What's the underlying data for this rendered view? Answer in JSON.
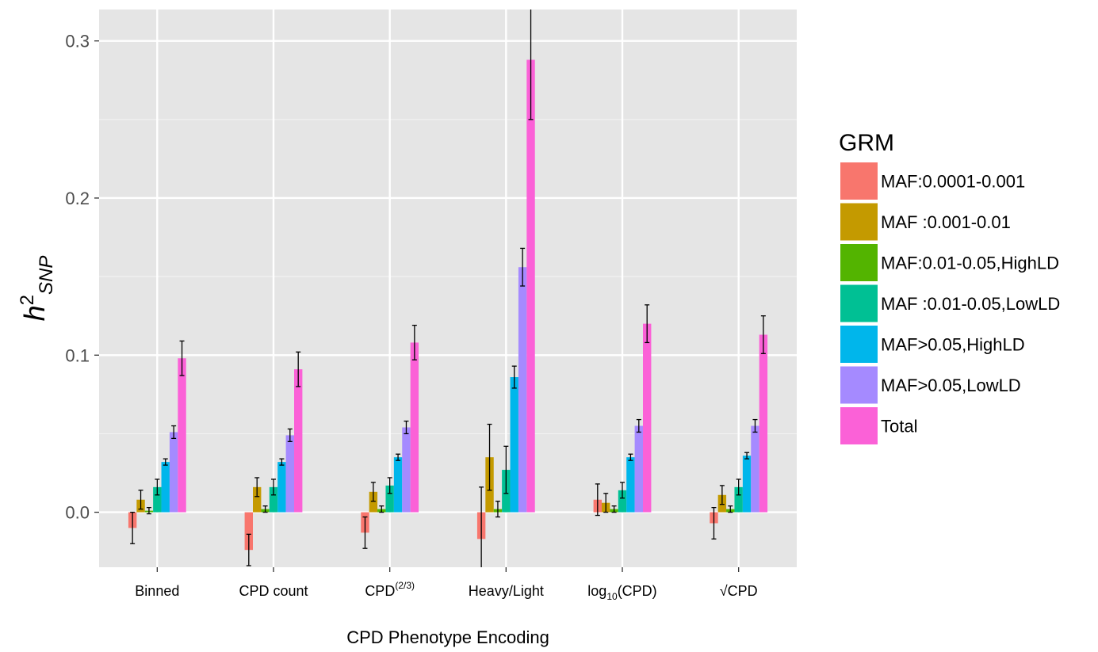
{
  "chart_data": {
    "type": "bar",
    "title": "",
    "xlabel": "CPD Phenotype Encoding",
    "ylabel": {
      "base": "h",
      "superscript": "2",
      "subscript": "SNP"
    },
    "ylim": [
      -0.035,
      0.32
    ],
    "yticks": [
      0.0,
      0.1,
      0.2,
      0.3
    ],
    "ytick_labels": [
      "0.0",
      "0.1",
      "0.2",
      "0.3"
    ],
    "grid": true,
    "legend_position": "right",
    "legend_title": "GRM",
    "categories": [
      {
        "base": "Binned",
        "sub": "",
        "sup": "",
        "after": ""
      },
      {
        "base": "CPD count",
        "sub": "",
        "sup": "",
        "after": ""
      },
      {
        "base": "CPD",
        "sub": "",
        "sup": "(2/3)",
        "after": ""
      },
      {
        "base": "Heavy/Light",
        "sub": "",
        "sup": "",
        "after": ""
      },
      {
        "base": "log",
        "sub": "10",
        "sup": "",
        "after": "(CPD)"
      },
      {
        "base": "√CPD",
        "sub": "",
        "sup": "",
        "after": ""
      }
    ],
    "series": [
      {
        "name": "MAF:0.0001-0.001",
        "color": "#F8766D",
        "values": [
          -0.01,
          -0.024,
          -0.013,
          -0.017,
          0.008,
          -0.007
        ],
        "errors": [
          0.01,
          0.01,
          0.01,
          0.033,
          0.01,
          0.01
        ]
      },
      {
        "name": "MAF :0.001-0.01",
        "color": "#C49A00",
        "values": [
          0.008,
          0.016,
          0.013,
          0.035,
          0.006,
          0.011
        ],
        "errors": [
          0.006,
          0.006,
          0.006,
          0.021,
          0.006,
          0.006
        ]
      },
      {
        "name": "MAF:0.01-0.05,HighLD",
        "color": "#53B400",
        "values": [
          0.001,
          0.002,
          0.002,
          0.002,
          0.002,
          0.002
        ],
        "errors": [
          0.002,
          0.002,
          0.002,
          0.005,
          0.002,
          0.002
        ]
      },
      {
        "name": "MAF :0.01-0.05,LowLD",
        "color": "#00C094",
        "values": [
          0.016,
          0.016,
          0.017,
          0.027,
          0.014,
          0.016
        ],
        "errors": [
          0.005,
          0.005,
          0.005,
          0.015,
          0.005,
          0.005
        ]
      },
      {
        "name": "MAF>0.05,HighLD",
        "color": "#00B6EB",
        "values": [
          0.032,
          0.032,
          0.035,
          0.086,
          0.035,
          0.036
        ],
        "errors": [
          0.002,
          0.002,
          0.002,
          0.007,
          0.002,
          0.002
        ]
      },
      {
        "name": "MAF>0.05,LowLD",
        "color": "#A58AFF",
        "values": [
          0.051,
          0.049,
          0.054,
          0.156,
          0.055,
          0.055
        ],
        "errors": [
          0.004,
          0.004,
          0.004,
          0.012,
          0.004,
          0.004
        ]
      },
      {
        "name": "Total",
        "color": "#FB61D7",
        "values": [
          0.098,
          0.091,
          0.108,
          0.288,
          0.12,
          0.113
        ],
        "errors": [
          0.011,
          0.011,
          0.011,
          0.038,
          0.012,
          0.012
        ]
      }
    ]
  }
}
